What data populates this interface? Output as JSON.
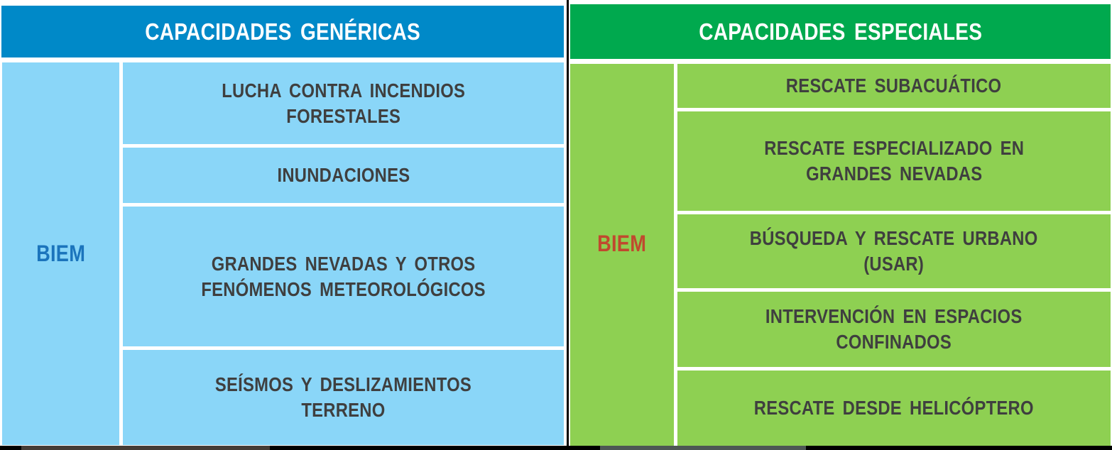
{
  "colors": {
    "header_blue": "#0089c8",
    "header_green": "#00a94e",
    "body_blue": "#8ad6f8",
    "body_green": "#8ed052",
    "biem_blue": "#1b74bc",
    "biem_red": "#c0492e",
    "cell_text": "#3f3f3f",
    "divider": "#000000"
  },
  "left_table": {
    "header": "CAPACIDADES GENÉRICAS",
    "unit_label": "BIEM",
    "rows": [
      {
        "label": "LUCHA CONTRA INCENDIOS\nFORESTALES"
      },
      {
        "label": "INUNDACIONES"
      },
      {
        "label": "GRANDES NEVADAS Y OTROS\nFENÓMENOS METEOROLÓGICOS"
      },
      {
        "label": "SEÍSMOS Y DESLIZAMIENTOS\nTERRENO"
      }
    ]
  },
  "right_table": {
    "header": "CAPACIDADES ESPECIALES",
    "unit_label": "BIEM",
    "rows": [
      {
        "label": "RESCATE SUBACUÁTICO"
      },
      {
        "label": "RESCATE ESPECIALIZADO EN\nGRANDES NEVADAS"
      },
      {
        "label": "BÚSQUEDA Y RESCATE URBANO\n(USAR)"
      },
      {
        "label": "INTERVENCIÓN EN ESPACIOS\nCONFINADOS"
      },
      {
        "label": "RESCATE DESDE HELICÓPTERO"
      }
    ]
  }
}
